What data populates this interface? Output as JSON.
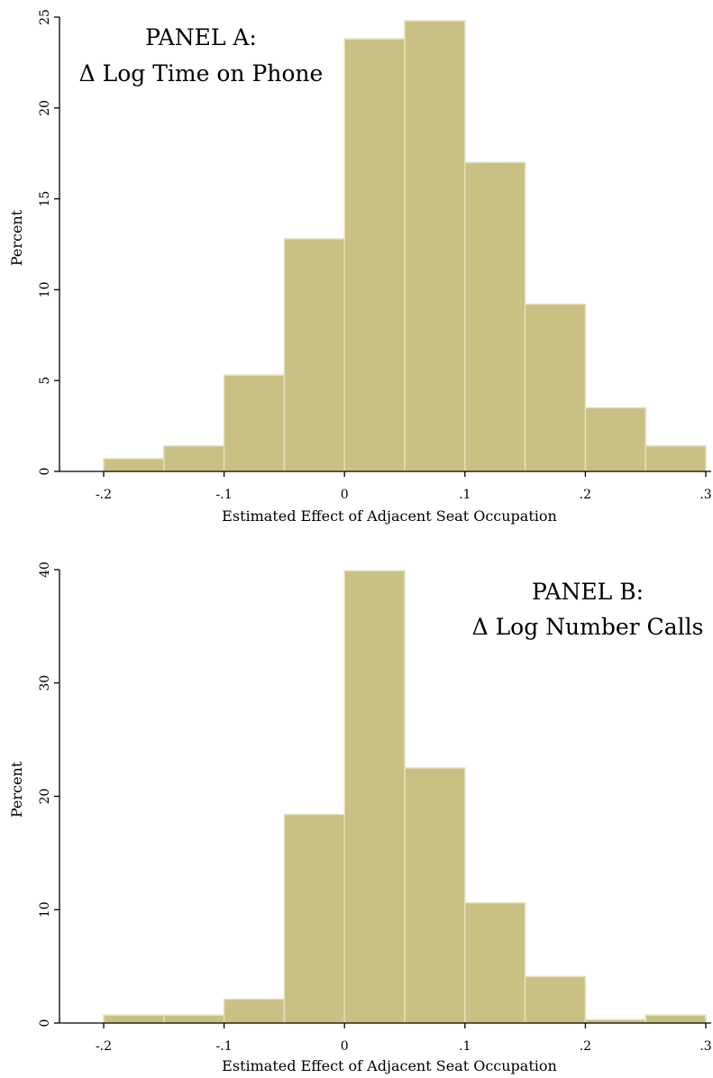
{
  "chart_data": [
    {
      "type": "bar",
      "panel_title": "PANEL A:",
      "panel_subtitle": "Δ Log Time on Phone",
      "xlabel": "Estimated Effect of Adjacent Seat Occupation",
      "ylabel": "Percent",
      "xlim": [
        -0.2,
        0.3
      ],
      "ylim": [
        0,
        25
      ],
      "bin_edges": [
        -0.2,
        -0.15,
        -0.1,
        -0.05,
        0,
        0.05,
        0.1,
        0.15,
        0.2,
        0.25,
        0.3
      ],
      "values": [
        0.7,
        1.4,
        5.3,
        12.8,
        23.8,
        24.8,
        17.0,
        9.2,
        3.5,
        1.4
      ],
      "x_ticks": [
        -0.2,
        -0.1,
        0,
        0.1,
        0.2,
        0.3
      ],
      "x_tick_labels": [
        "-.2",
        "-.1",
        "0",
        ".1",
        ".2",
        ".3"
      ],
      "y_ticks": [
        0,
        5,
        10,
        15,
        20,
        25
      ],
      "y_tick_labels": [
        "0",
        "5",
        "10",
        "15",
        "20",
        "25"
      ],
      "grid": false,
      "title_placement": "top-left"
    },
    {
      "type": "bar",
      "panel_title": "PANEL B:",
      "panel_subtitle": "Δ Log Number Calls",
      "xlabel": "Estimated Effect of Adjacent Seat Occupation",
      "ylabel": "Percent",
      "xlim": [
        -0.2,
        0.3
      ],
      "ylim": [
        0,
        40
      ],
      "bin_edges": [
        -0.2,
        -0.15,
        -0.1,
        -0.05,
        0,
        0.05,
        0.1,
        0.15,
        0.2,
        0.25,
        0.3
      ],
      "values": [
        0.7,
        0.7,
        2.1,
        18.4,
        39.9,
        22.5,
        10.6,
        4.1,
        0.3,
        0.7
      ],
      "x_ticks": [
        -0.2,
        -0.1,
        0,
        0.1,
        0.2,
        0.3
      ],
      "x_tick_labels": [
        "-.2",
        "-.1",
        "0",
        ".1",
        ".2",
        ".3"
      ],
      "y_ticks": [
        0,
        10,
        20,
        30,
        40
      ],
      "y_tick_labels": [
        "0",
        "10",
        "20",
        "30",
        "40"
      ],
      "grid": false,
      "title_placement": "top-right"
    }
  ]
}
